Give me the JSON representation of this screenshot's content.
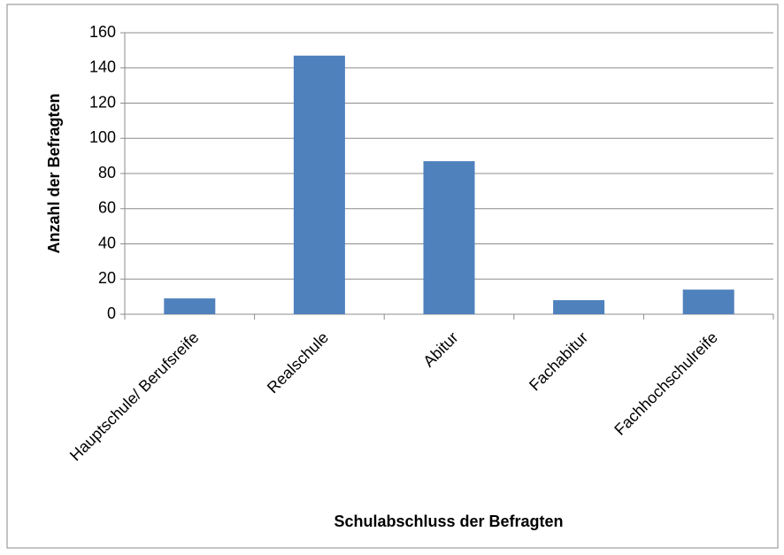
{
  "chart_data": {
    "type": "bar",
    "x_label": "Schulabschluss der Befragten",
    "y_label": "Anzahl der Befragten",
    "categories": [
      "Hauptschule/ Berufsreife",
      "Realschule",
      "Abitur",
      "Fachabitur",
      "Fachhochschulreife"
    ],
    "values": [
      9,
      147,
      87,
      8,
      14
    ],
    "color": "#4f81bd",
    "ylim": [
      0,
      160
    ],
    "yticks": [
      0,
      20,
      40,
      60,
      80,
      100,
      120,
      140,
      160
    ],
    "grid": true
  }
}
